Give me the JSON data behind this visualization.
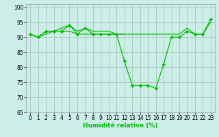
{
  "xlabel": "Humidité relative (%)",
  "background_color": "#cceee8",
  "grid_color": "#aaccbb",
  "line_color": "#00bb00",
  "ylim": [
    65,
    101
  ],
  "xlim": [
    -0.5,
    23.5
  ],
  "yticks": [
    65,
    70,
    75,
    80,
    85,
    90,
    95,
    100
  ],
  "xticks": [
    0,
    1,
    2,
    3,
    4,
    5,
    6,
    7,
    8,
    9,
    10,
    11,
    12,
    13,
    14,
    15,
    16,
    17,
    18,
    19,
    20,
    21,
    22,
    23
  ],
  "series1": {
    "x": [
      0,
      1,
      2,
      3,
      4,
      5,
      6,
      7,
      8,
      9,
      10,
      11,
      12,
      13,
      14,
      15,
      16,
      17,
      18,
      19,
      20,
      21,
      22,
      23
    ],
    "y": [
      91,
      90,
      92,
      92,
      92,
      94,
      91,
      93,
      91,
      91,
      91,
      91,
      82,
      74,
      74,
      74,
      73,
      81,
      90,
      90,
      92,
      91,
      91,
      96
    ]
  },
  "series2": {
    "x": [
      0,
      1,
      2,
      3,
      4,
      5,
      6,
      7,
      8,
      9,
      10,
      11,
      12,
      13,
      14,
      15,
      16,
      17,
      18,
      19,
      20,
      21,
      22,
      23
    ],
    "y": [
      91,
      90,
      92,
      92,
      93,
      94,
      92,
      93,
      92,
      92,
      92,
      91,
      91,
      91,
      91,
      91,
      91,
      91,
      91,
      91,
      93,
      91,
      91,
      95
    ]
  },
  "series3": {
    "x": [
      0,
      1,
      2,
      3,
      4,
      5,
      6,
      7,
      8,
      9,
      10,
      11,
      12
    ],
    "y": [
      91,
      90,
      91,
      92,
      92,
      92,
      91,
      91,
      91,
      91,
      91,
      91,
      91
    ]
  }
}
